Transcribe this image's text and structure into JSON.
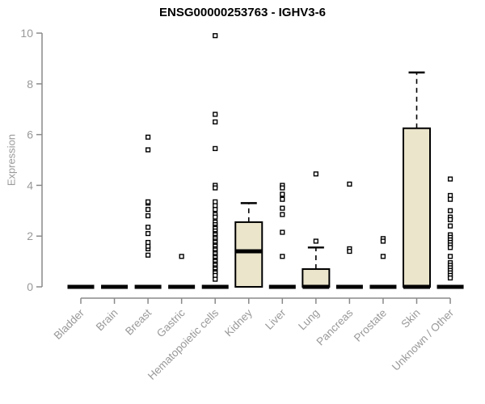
{
  "chart_data": {
    "type": "boxplot",
    "title": "ENSG00000253763 - IGHV3-6",
    "ylabel": "Expression",
    "xlabel": "",
    "ylim": [
      0,
      10
    ],
    "yticks": [
      0,
      2,
      4,
      6,
      8,
      10
    ],
    "legend": "none",
    "grid": false,
    "categories": [
      "Bladder",
      "Brain",
      "Breast",
      "Gastric",
      "Hematopoietic cells",
      "Kidney",
      "Liver",
      "Lung",
      "Pancreas",
      "Prostate",
      "Skin",
      "Unknown / Other"
    ],
    "boxes": [
      {
        "category": "Bladder",
        "q1": 0,
        "median": 0,
        "q3": 0,
        "whisker_low": 0,
        "whisker_high": 0,
        "outliers": []
      },
      {
        "category": "Brain",
        "q1": 0,
        "median": 0,
        "q3": 0,
        "whisker_low": 0,
        "whisker_high": 0,
        "outliers": []
      },
      {
        "category": "Breast",
        "q1": 0,
        "median": 0,
        "q3": 0,
        "whisker_low": 0,
        "whisker_high": 0,
        "outliers": [
          1.25,
          1.5,
          1.6,
          1.75,
          2.1,
          2.35,
          2.8,
          3.05,
          3.3,
          3.35,
          5.4,
          5.9
        ]
      },
      {
        "category": "Gastric",
        "q1": 0,
        "median": 0,
        "q3": 0,
        "whisker_low": 0,
        "whisker_high": 0,
        "outliers": [
          1.2
        ]
      },
      {
        "category": "Hematopoietic cells",
        "q1": 0,
        "median": 0,
        "q3": 0,
        "whisker_low": 0,
        "whisker_high": 0,
        "outliers": [
          9.9,
          6.8,
          6.5,
          5.45,
          4.0,
          3.9,
          3.35,
          3.2,
          3.05,
          2.85,
          2.75,
          2.55,
          2.45,
          2.35,
          2.3,
          2.2,
          2.1,
          2.05,
          1.95,
          1.9,
          1.8,
          1.75,
          1.65,
          1.6,
          1.5,
          1.45,
          1.35,
          1.3,
          1.2,
          1.15,
          1.05,
          1.0,
          0.9,
          0.85,
          0.75,
          0.7,
          0.6,
          0.55,
          0.45,
          0.3
        ]
      },
      {
        "category": "Kidney",
        "q1": 0,
        "median": 1.4,
        "q3": 2.55,
        "whisker_low": 0,
        "whisker_high": 3.3,
        "outliers": []
      },
      {
        "category": "Liver",
        "q1": 0,
        "median": 0,
        "q3": 0,
        "whisker_low": 0,
        "whisker_high": 0,
        "outliers": [
          4.0,
          3.9,
          3.65,
          3.45,
          3.1,
          2.85,
          2.15,
          1.2
        ]
      },
      {
        "category": "Lung",
        "q1": 0,
        "median": 0,
        "q3": 0.7,
        "whisker_low": 0,
        "whisker_high": 1.55,
        "outliers": [
          4.45,
          1.8
        ]
      },
      {
        "category": "Pancreas",
        "q1": 0,
        "median": 0,
        "q3": 0,
        "whisker_low": 0,
        "whisker_high": 0,
        "outliers": [
          4.05,
          1.5,
          1.4
        ]
      },
      {
        "category": "Prostate",
        "q1": 0,
        "median": 0,
        "q3": 0,
        "whisker_low": 0,
        "whisker_high": 0,
        "outliers": [
          1.9,
          1.8,
          1.2
        ]
      },
      {
        "category": "Skin",
        "q1": 0,
        "median": 0,
        "q3": 6.25,
        "whisker_low": 0,
        "whisker_high": 8.45,
        "outliers": []
      },
      {
        "category": "Unknown / Other",
        "q1": 0,
        "median": 0,
        "q3": 0,
        "whisker_low": 0,
        "whisker_high": 0,
        "outliers": [
          4.25,
          3.6,
          3.45,
          3.0,
          2.75,
          2.65,
          2.4,
          2.05,
          1.95,
          1.85,
          1.75,
          1.65,
          1.55,
          1.2,
          0.95,
          0.85,
          0.75,
          0.65,
          0.55,
          0.45,
          0.35
        ]
      }
    ],
    "colors": {
      "box_fill": "#EAE5CB",
      "box_stroke": "#000000",
      "median": "#000000",
      "whisker": "#000000",
      "outlier_stroke": "#000000",
      "outlier_fill": "#ffffff",
      "axis_line": "#8a8a8a",
      "axis_text": "#999999",
      "title_text": "#000000"
    }
  }
}
